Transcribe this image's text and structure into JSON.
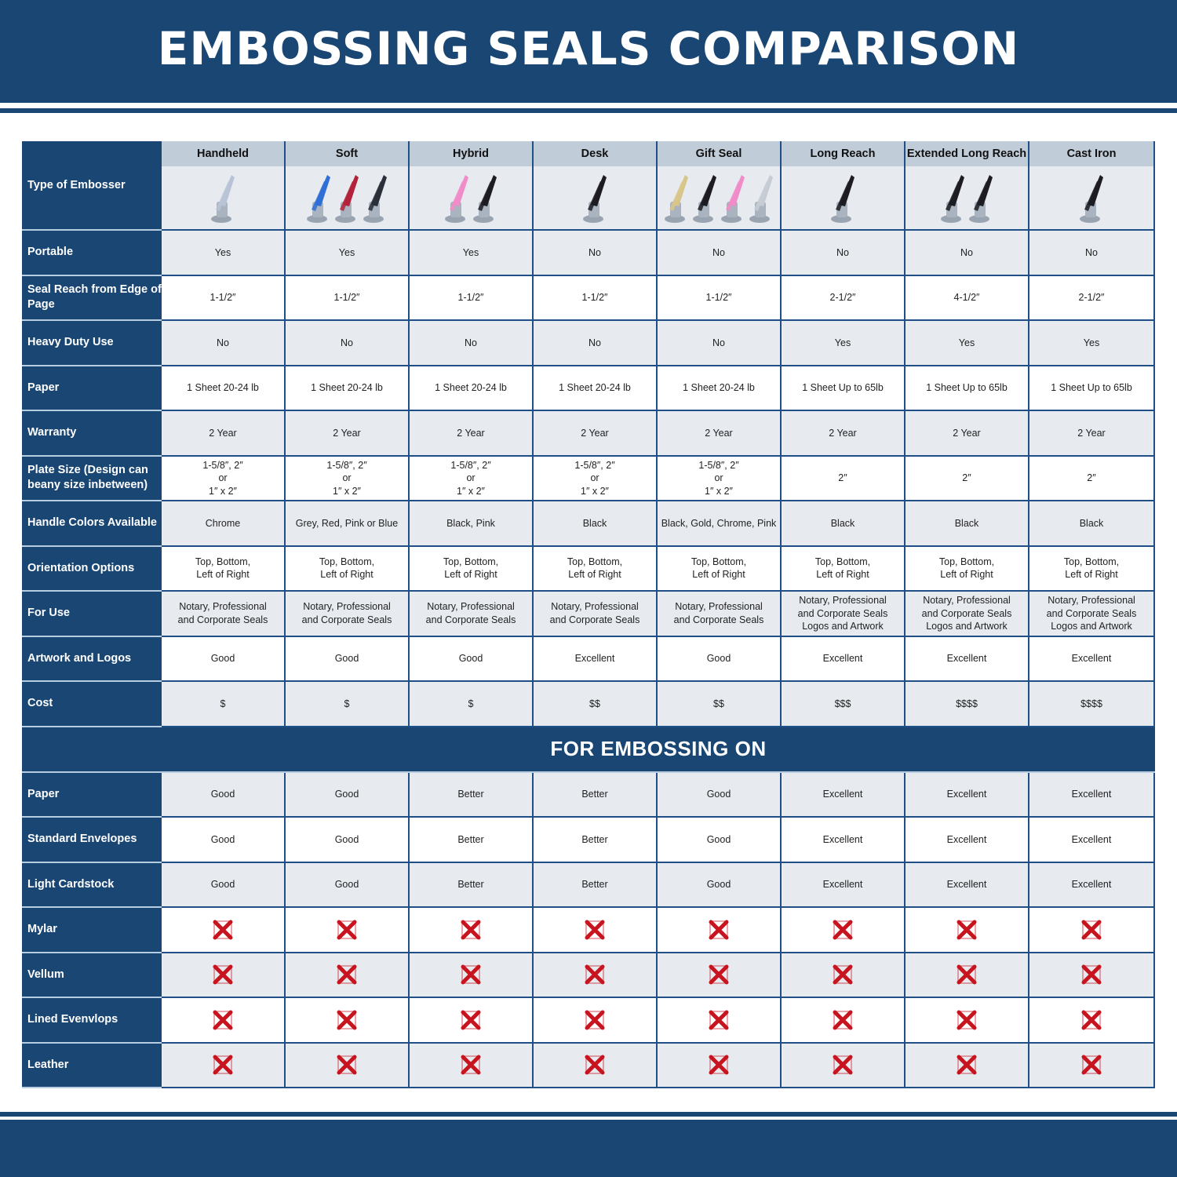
{
  "title": "EMBOSSING SEALS COMPARISON",
  "header_label": "Type of Embosser",
  "columns": [
    {
      "name": "Handheld",
      "handle_colors": [
        "#b8c4d6"
      ]
    },
    {
      "name": "Soft",
      "handle_colors": [
        "#2f6fd6",
        "#b3223a",
        "#2a2f3a"
      ]
    },
    {
      "name": "Hybrid",
      "handle_colors": [
        "#f08cc8",
        "#1c1c22"
      ]
    },
    {
      "name": "Desk",
      "handle_colors": [
        "#1c1c22"
      ]
    },
    {
      "name": "Gift Seal",
      "handle_colors": [
        "#d8c58a",
        "#1c1c22",
        "#f08cc8",
        "#c7ccd4"
      ]
    },
    {
      "name": "Long Reach",
      "handle_colors": [
        "#1c1c22"
      ]
    },
    {
      "name": "Extended Long Reach",
      "handle_colors": [
        "#1c1c22",
        "#1c1c22"
      ]
    },
    {
      "name": "Cast Iron",
      "handle_colors": [
        "#1c1c22"
      ]
    }
  ],
  "rows": [
    {
      "label": "Portable",
      "values": [
        "Yes",
        "Yes",
        "Yes",
        "No",
        "No",
        "No",
        "No",
        "No"
      ]
    },
    {
      "label": "Seal Reach from Edge of Page",
      "values": [
        "1-1/2″",
        "1-1/2″",
        "1-1/2″",
        "1-1/2″",
        "1-1/2″",
        "2-1/2″",
        "4-1/2″",
        "2-1/2″"
      ]
    },
    {
      "label": "Heavy Duty Use",
      "values": [
        "No",
        "No",
        "No",
        "No",
        "No",
        "Yes",
        "Yes",
        "Yes"
      ]
    },
    {
      "label": "Paper",
      "values": [
        "1 Sheet 20-24 lb",
        "1 Sheet 20-24 lb",
        "1 Sheet 20-24 lb",
        "1 Sheet 20-24 lb",
        "1 Sheet 20-24 lb",
        "1 Sheet Up to 65lb",
        "1 Sheet Up to 65lb",
        "1 Sheet Up to 65lb"
      ]
    },
    {
      "label": "Warranty",
      "values": [
        "2 Year",
        "2 Year",
        "2 Year",
        "2 Year",
        "2 Year",
        "2 Year",
        "2 Year",
        "2 Year"
      ]
    },
    {
      "label": "Plate Size (Design can beany size inbetween)",
      "values": [
        "1-5/8″, 2″\nor\n1″ x 2″",
        "1-5/8″, 2″\nor\n1″ x 2″",
        "1-5/8″, 2″\nor\n1″ x 2″",
        "1-5/8″, 2″\nor\n1″ x 2″",
        "1-5/8″, 2″\nor\n1″ x 2″",
        "2″",
        "2″",
        "2″"
      ]
    },
    {
      "label": "Handle Colors Available",
      "values": [
        "Chrome",
        "Grey, Red, Pink or Blue",
        "Black, Pink",
        "Black",
        "Black, Gold, Chrome, Pink",
        "Black",
        "Black",
        "Black"
      ]
    },
    {
      "label": "Orientation Options",
      "values": [
        "Top, Bottom,\nLeft of Right",
        "Top, Bottom,\nLeft of Right",
        "Top, Bottom,\nLeft of Right",
        "Top, Bottom,\nLeft of Right",
        "Top, Bottom,\nLeft of Right",
        "Top, Bottom,\nLeft of Right",
        "Top, Bottom,\nLeft of Right",
        "Top, Bottom,\nLeft of Right"
      ]
    },
    {
      "label": "For Use",
      "values": [
        "Notary, Professional\nand Corporate Seals",
        "Notary, Professional\nand Corporate Seals",
        "Notary, Professional\nand Corporate Seals",
        "Notary, Professional\nand Corporate Seals",
        "Notary, Professional\nand Corporate Seals",
        "Notary, Professional\nand Corporate Seals\nLogos and Artwork",
        "Notary, Professional\nand Corporate Seals\nLogos and Artwork",
        "Notary, Professional\nand Corporate Seals\nLogos and Artwork"
      ]
    },
    {
      "label": "Artwork and Logos",
      "values": [
        "Good",
        "Good",
        "Good",
        "Excellent",
        "Good",
        "Excellent",
        "Excellent",
        "Excellent"
      ]
    },
    {
      "label": "Cost",
      "values": [
        "$",
        "$",
        "$",
        "$$",
        "$$",
        "$$$",
        "$$$$",
        "$$$$"
      ]
    }
  ],
  "section_title": "FOR EMBOSSING ON",
  "section_rows": [
    {
      "label": "Paper",
      "values": [
        "Good",
        "Good",
        "Better",
        "Better",
        "Good",
        "Excellent",
        "Excellent",
        "Excellent"
      ]
    },
    {
      "label": "Standard Envelopes",
      "values": [
        "Good",
        "Good",
        "Better",
        "Better",
        "Good",
        "Excellent",
        "Excellent",
        "Excellent"
      ]
    },
    {
      "label": "Light Cardstock",
      "values": [
        "Good",
        "Good",
        "Better",
        "Better",
        "Good",
        "Excellent",
        "Excellent",
        "Excellent"
      ]
    },
    {
      "label": "Mylar",
      "values": [
        "x",
        "x",
        "x",
        "x",
        "x",
        "x",
        "x",
        "x"
      ]
    },
    {
      "label": "Vellum",
      "values": [
        "x",
        "x",
        "x",
        "x",
        "x",
        "x",
        "x",
        "x"
      ]
    },
    {
      "label": "Lined Evenvlops",
      "values": [
        "x",
        "x",
        "x",
        "x",
        "x",
        "x",
        "x",
        "x"
      ]
    },
    {
      "label": "Leather",
      "values": [
        "x",
        "x",
        "x",
        "x",
        "x",
        "x",
        "x",
        "x"
      ]
    }
  ],
  "colors": {
    "navy": "#1a4674",
    "header_gray": "#c0ccd8",
    "row_gray": "#e7ebf0",
    "cross_red": "#c8141e"
  }
}
